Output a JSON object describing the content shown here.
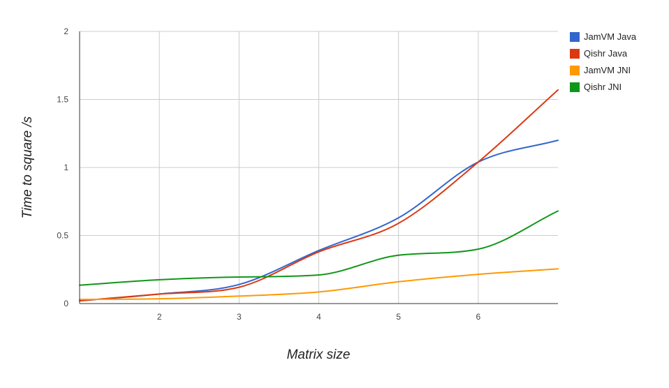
{
  "chart_data": {
    "type": "line",
    "xlabel": "Matrix size",
    "ylabel": "Time to square /s",
    "xlim": [
      1,
      7
    ],
    "ylim": [
      0,
      2
    ],
    "x_ticks": [
      2,
      3,
      4,
      5,
      6
    ],
    "y_ticks": [
      0,
      0.5,
      1,
      1.5,
      2
    ],
    "y_tick_labels": [
      "0",
      "0.5",
      "1",
      "1.5",
      "2"
    ],
    "grid": true,
    "legend_position": "right",
    "x": [
      1,
      2,
      3,
      4,
      5,
      6,
      7
    ],
    "series": [
      {
        "name": "JamVM Java",
        "color": "#3366cc",
        "values": [
          0.02,
          0.07,
          0.14,
          0.39,
          0.63,
          1.04,
          1.2
        ]
      },
      {
        "name": "Qishr Java",
        "color": "#dc3912",
        "values": [
          0.02,
          0.07,
          0.12,
          0.38,
          0.59,
          1.04,
          1.57
        ]
      },
      {
        "name": "JamVM JNI",
        "color": "#ff9900",
        "values": [
          0.03,
          0.035,
          0.055,
          0.085,
          0.16,
          0.215,
          0.255
        ]
      },
      {
        "name": "Qishr JNI",
        "color": "#109618",
        "values": [
          0.135,
          0.175,
          0.195,
          0.21,
          0.355,
          0.4,
          0.68
        ]
      }
    ]
  }
}
